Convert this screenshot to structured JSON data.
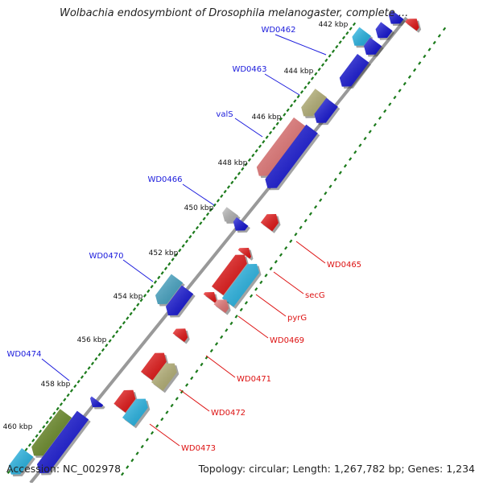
{
  "title": "Wolbachia endosymbiont of Drosophila melanogaster, complete ...",
  "footer": {
    "accession": "Accession: NC_002978",
    "summary": "Topology: circular; Length: 1,267,782 bp; Genes: 1,234"
  },
  "colors": {
    "forward_label": "#1a1adc",
    "reverse_label": "#dd1111",
    "backbone": "#999999",
    "tick": "#1b7a1b"
  },
  "scale_labels": [
    "442 kbp",
    "444 kbp",
    "446 kbp",
    "448 kbp",
    "450 kbp",
    "452 kbp",
    "454 kbp",
    "456 kbp",
    "458 kbp",
    "460 kbp"
  ],
  "gene_labels_forward": [
    "WD0462",
    "WD0463",
    "valS",
    "WD0466",
    "WD0470",
    "WD0474"
  ],
  "gene_labels_reverse": [
    "WD0465",
    "secG",
    "pyrG",
    "WD0469",
    "WD0471",
    "WD0472",
    "WD0473"
  ]
}
